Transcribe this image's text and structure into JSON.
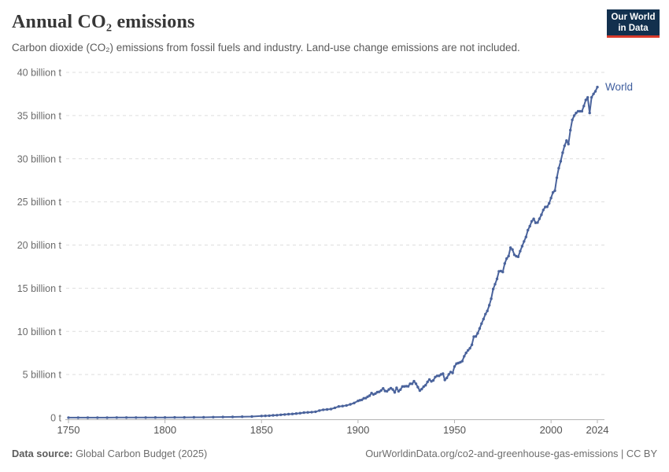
{
  "header": {
    "title": "Annual CO₂ emissions",
    "subtitle": "Carbon dioxide (CO₂) emissions from fossil fuels and industry. Land-use change emissions are not included.",
    "logo": {
      "line1": "Our World",
      "line2": "in Data"
    }
  },
  "footer": {
    "source_label": "Data source:",
    "source_value": "Global Carbon Budget (2025)",
    "note": "OurWorldinData.org/co2-and-greenhouse-gas-emissions | CC BY"
  },
  "colors": {
    "line": "#4a639c",
    "world_label": "#3f5e9e",
    "grid": "#dedede",
    "axis": "#b3b3b3",
    "y_tick_text": "#6b6b6b",
    "x_tick_text": "#525252",
    "logo_bg": "#12304e",
    "logo_stripe": "#d93a2a"
  },
  "chart_data": {
    "type": "line",
    "title": "Annual CO₂ emissions",
    "xlabel": "",
    "ylabel": "",
    "unit": "billion tonnes of CO₂",
    "grid": "dashed-horizontal",
    "legend_position": "end-of-line-label",
    "xlim": [
      1750,
      2027
    ],
    "ylim": [
      0,
      40
    ],
    "x_ticks": [
      1750,
      1800,
      1850,
      1900,
      1950,
      2000,
      2024
    ],
    "y_ticks": [
      0,
      5,
      10,
      15,
      20,
      25,
      30,
      35,
      40
    ],
    "y_tick_labels": [
      "0 t",
      "5 billion t",
      "10 billion t",
      "15 billion t",
      "20 billion t",
      "25 billion t",
      "30 billion t",
      "35 billion t",
      "40 billion t"
    ],
    "series": [
      {
        "name": "World",
        "color": "#4a639c",
        "points": [
          [
            1750,
            0.009
          ],
          [
            1755,
            0.01
          ],
          [
            1760,
            0.011
          ],
          [
            1765,
            0.012
          ],
          [
            1770,
            0.013
          ],
          [
            1775,
            0.015
          ],
          [
            1780,
            0.016
          ],
          [
            1785,
            0.018
          ],
          [
            1790,
            0.021
          ],
          [
            1795,
            0.025
          ],
          [
            1800,
            0.03
          ],
          [
            1805,
            0.033
          ],
          [
            1810,
            0.037
          ],
          [
            1815,
            0.042
          ],
          [
            1820,
            0.05
          ],
          [
            1825,
            0.06
          ],
          [
            1830,
            0.08
          ],
          [
            1835,
            0.095
          ],
          [
            1840,
            0.115
          ],
          [
            1845,
            0.14
          ],
          [
            1850,
            0.2
          ],
          [
            1852,
            0.22
          ],
          [
            1854,
            0.24
          ],
          [
            1856,
            0.27
          ],
          [
            1858,
            0.29
          ],
          [
            1860,
            0.34
          ],
          [
            1862,
            0.37
          ],
          [
            1864,
            0.41
          ],
          [
            1866,
            0.44
          ],
          [
            1868,
            0.48
          ],
          [
            1870,
            0.53
          ],
          [
            1872,
            0.59
          ],
          [
            1874,
            0.62
          ],
          [
            1876,
            0.65
          ],
          [
            1878,
            0.69
          ],
          [
            1880,
            0.83
          ],
          [
            1882,
            0.92
          ],
          [
            1884,
            0.96
          ],
          [
            1886,
            1.0
          ],
          [
            1888,
            1.15
          ],
          [
            1890,
            1.3
          ],
          [
            1892,
            1.35
          ],
          [
            1894,
            1.42
          ],
          [
            1896,
            1.55
          ],
          [
            1898,
            1.7
          ],
          [
            1900,
            1.95
          ],
          [
            1901,
            2.02
          ],
          [
            1902,
            2.07
          ],
          [
            1903,
            2.25
          ],
          [
            1904,
            2.27
          ],
          [
            1905,
            2.43
          ],
          [
            1906,
            2.55
          ],
          [
            1907,
            2.85
          ],
          [
            1908,
            2.7
          ],
          [
            1909,
            2.8
          ],
          [
            1910,
            2.96
          ],
          [
            1911,
            3.0
          ],
          [
            1912,
            3.16
          ],
          [
            1913,
            3.4
          ],
          [
            1914,
            3.1
          ],
          [
            1915,
            3.06
          ],
          [
            1916,
            3.27
          ],
          [
            1917,
            3.43
          ],
          [
            1918,
            3.27
          ],
          [
            1919,
            2.93
          ],
          [
            1920,
            3.47
          ],
          [
            1921,
            3.06
          ],
          [
            1922,
            3.25
          ],
          [
            1923,
            3.62
          ],
          [
            1924,
            3.63
          ],
          [
            1925,
            3.65
          ],
          [
            1926,
            3.64
          ],
          [
            1927,
            3.94
          ],
          [
            1928,
            3.93
          ],
          [
            1929,
            4.23
          ],
          [
            1930,
            3.94
          ],
          [
            1931,
            3.54
          ],
          [
            1932,
            3.14
          ],
          [
            1933,
            3.32
          ],
          [
            1934,
            3.6
          ],
          [
            1935,
            3.76
          ],
          [
            1936,
            4.15
          ],
          [
            1937,
            4.43
          ],
          [
            1938,
            4.21
          ],
          [
            1939,
            4.32
          ],
          [
            1940,
            4.71
          ],
          [
            1941,
            4.85
          ],
          [
            1942,
            4.85
          ],
          [
            1943,
            5.01
          ],
          [
            1944,
            5.1
          ],
          [
            1945,
            4.37
          ],
          [
            1946,
            4.61
          ],
          [
            1947,
            5.02
          ],
          [
            1948,
            5.29
          ],
          [
            1949,
            5.19
          ],
          [
            1950,
            5.93
          ],
          [
            1951,
            6.27
          ],
          [
            1952,
            6.33
          ],
          [
            1953,
            6.42
          ],
          [
            1954,
            6.55
          ],
          [
            1955,
            7.12
          ],
          [
            1956,
            7.51
          ],
          [
            1957,
            7.81
          ],
          [
            1958,
            8.05
          ],
          [
            1959,
            8.46
          ],
          [
            1960,
            9.39
          ],
          [
            1961,
            9.41
          ],
          [
            1962,
            9.78
          ],
          [
            1963,
            10.33
          ],
          [
            1964,
            10.9
          ],
          [
            1965,
            11.43
          ],
          [
            1966,
            12.0
          ],
          [
            1967,
            12.37
          ],
          [
            1968,
            13.03
          ],
          [
            1969,
            13.79
          ],
          [
            1970,
            14.9
          ],
          [
            1971,
            15.46
          ],
          [
            1972,
            16.08
          ],
          [
            1973,
            16.96
          ],
          [
            1974,
            16.98
          ],
          [
            1975,
            16.88
          ],
          [
            1976,
            17.86
          ],
          [
            1977,
            18.43
          ],
          [
            1978,
            18.72
          ],
          [
            1979,
            19.7
          ],
          [
            1980,
            19.48
          ],
          [
            1981,
            18.87
          ],
          [
            1982,
            18.71
          ],
          [
            1983,
            18.64
          ],
          [
            1984,
            19.29
          ],
          [
            1985,
            19.86
          ],
          [
            1986,
            20.42
          ],
          [
            1987,
            20.94
          ],
          [
            1988,
            21.72
          ],
          [
            1989,
            22.19
          ],
          [
            1990,
            22.75
          ],
          [
            1991,
            23.03
          ],
          [
            1992,
            22.58
          ],
          [
            1993,
            22.61
          ],
          [
            1994,
            23.04
          ],
          [
            1995,
            23.51
          ],
          [
            1996,
            24.06
          ],
          [
            1997,
            24.41
          ],
          [
            1998,
            24.43
          ],
          [
            1999,
            24.83
          ],
          [
            2000,
            25.45
          ],
          [
            2001,
            26.1
          ],
          [
            2002,
            26.3
          ],
          [
            2003,
            27.8
          ],
          [
            2004,
            28.9
          ],
          [
            2005,
            29.7
          ],
          [
            2006,
            30.7
          ],
          [
            2007,
            31.5
          ],
          [
            2008,
            32.1
          ],
          [
            2009,
            31.7
          ],
          [
            2010,
            33.3
          ],
          [
            2011,
            34.5
          ],
          [
            2012,
            35.0
          ],
          [
            2013,
            35.3
          ],
          [
            2014,
            35.5
          ],
          [
            2015,
            35.5
          ],
          [
            2016,
            35.5
          ],
          [
            2017,
            36.1
          ],
          [
            2018,
            36.8
          ],
          [
            2019,
            37.1
          ],
          [
            2020,
            35.3
          ],
          [
            2021,
            37.1
          ],
          [
            2022,
            37.5
          ],
          [
            2023,
            37.8
          ],
          [
            2024,
            38.3
          ]
        ]
      }
    ]
  }
}
